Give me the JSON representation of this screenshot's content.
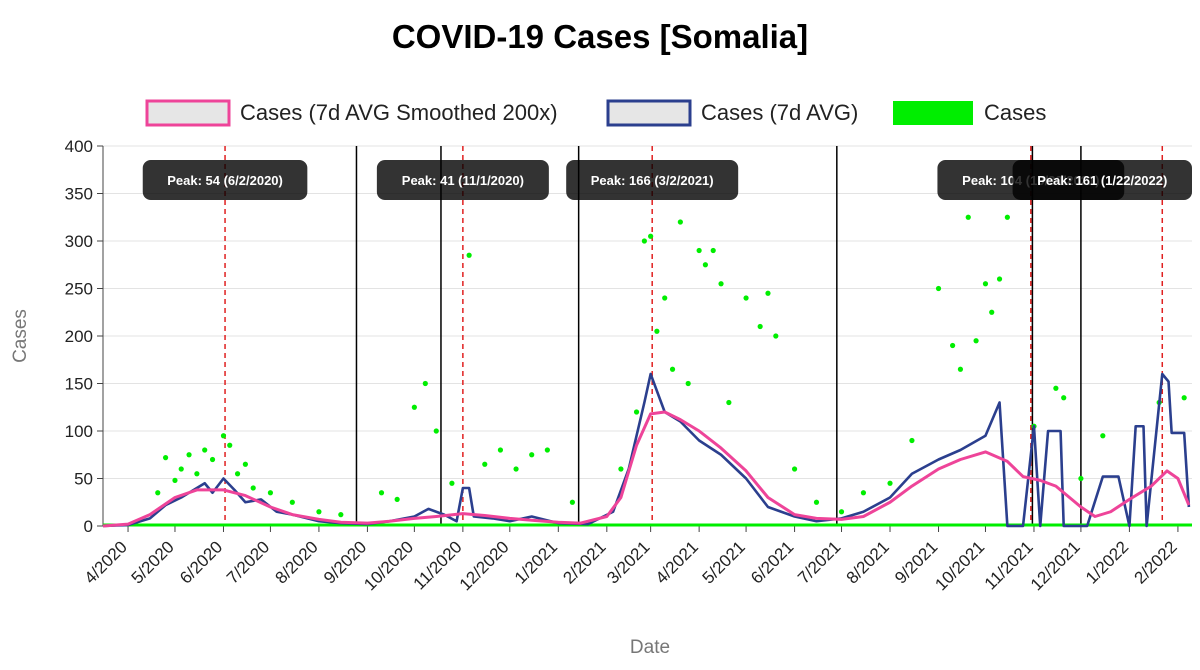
{
  "chart_data": {
    "type": "line",
    "title": "COVID-19 Cases [Somalia]",
    "xlabel": "Date",
    "ylabel": "Cases",
    "ylim": [
      0,
      400
    ],
    "yticks": [
      0,
      50,
      100,
      150,
      200,
      250,
      300,
      350,
      400
    ],
    "xticks": [
      "4/2020",
      "5/2020",
      "6/2020",
      "7/2020",
      "8/2020",
      "9/2020",
      "10/2020",
      "11/2020",
      "12/2020",
      "1/2021",
      "2/2021",
      "3/2021",
      "4/2021",
      "5/2021",
      "6/2021",
      "7/2021",
      "8/2021",
      "9/2021",
      "10/2021",
      "11/2021",
      "12/2021",
      "1/2022",
      "2/2022"
    ],
    "x_range": [
      "2020-03-16",
      "2022-02-10"
    ],
    "grid": true,
    "legend_position": "top",
    "series": [
      {
        "name": "Cases (7d AVG Smoothed 200x)",
        "color": "#ee4499",
        "points": [
          [
            "2020-03-16",
            0
          ],
          [
            "2020-04-01",
            2
          ],
          [
            "2020-04-15",
            12
          ],
          [
            "2020-05-01",
            30
          ],
          [
            "2020-05-15",
            38
          ],
          [
            "2020-06-01",
            38
          ],
          [
            "2020-06-15",
            32
          ],
          [
            "2020-07-01",
            20
          ],
          [
            "2020-07-15",
            12
          ],
          [
            "2020-08-01",
            7
          ],
          [
            "2020-08-15",
            4
          ],
          [
            "2020-09-01",
            3
          ],
          [
            "2020-09-15",
            5
          ],
          [
            "2020-10-01",
            8
          ],
          [
            "2020-10-15",
            10
          ],
          [
            "2020-11-01",
            13
          ],
          [
            "2020-11-15",
            11
          ],
          [
            "2020-12-01",
            8
          ],
          [
            "2020-12-15",
            6
          ],
          [
            "2021-01-01",
            4
          ],
          [
            "2021-01-15",
            3
          ],
          [
            "2021-02-01",
            10
          ],
          [
            "2021-02-10",
            30
          ],
          [
            "2021-02-20",
            85
          ],
          [
            "2021-03-01",
            118
          ],
          [
            "2021-03-10",
            120
          ],
          [
            "2021-03-20",
            112
          ],
          [
            "2021-04-01",
            100
          ],
          [
            "2021-04-15",
            82
          ],
          [
            "2021-05-01",
            58
          ],
          [
            "2021-05-15",
            30
          ],
          [
            "2021-06-01",
            12
          ],
          [
            "2021-06-15",
            8
          ],
          [
            "2021-07-01",
            7
          ],
          [
            "2021-07-15",
            10
          ],
          [
            "2021-08-01",
            25
          ],
          [
            "2021-08-15",
            42
          ],
          [
            "2021-09-01",
            60
          ],
          [
            "2021-09-15",
            70
          ],
          [
            "2021-10-01",
            78
          ],
          [
            "2021-10-15",
            68
          ],
          [
            "2021-10-25",
            52
          ],
          [
            "2021-11-05",
            48
          ],
          [
            "2021-11-15",
            42
          ],
          [
            "2021-12-01",
            20
          ],
          [
            "2021-12-10",
            10
          ],
          [
            "2021-12-20",
            15
          ],
          [
            "2022-01-01",
            28
          ],
          [
            "2022-01-15",
            42
          ],
          [
            "2022-01-25",
            58
          ],
          [
            "2022-02-01",
            50
          ],
          [
            "2022-02-08",
            22
          ]
        ]
      },
      {
        "name": "Cases (7d AVG)",
        "color": "#2b3f8e",
        "points": [
          [
            "2020-03-16",
            0
          ],
          [
            "2020-04-01",
            1
          ],
          [
            "2020-04-15",
            8
          ],
          [
            "2020-04-25",
            22
          ],
          [
            "2020-05-05",
            30
          ],
          [
            "2020-05-15",
            40
          ],
          [
            "2020-05-20",
            45
          ],
          [
            "2020-05-25",
            35
          ],
          [
            "2020-06-01",
            50
          ],
          [
            "2020-06-08",
            38
          ],
          [
            "2020-06-15",
            25
          ],
          [
            "2020-06-25",
            28
          ],
          [
            "2020-07-05",
            15
          ],
          [
            "2020-07-15",
            12
          ],
          [
            "2020-08-01",
            5
          ],
          [
            "2020-08-15",
            3
          ],
          [
            "2020-09-01",
            2
          ],
          [
            "2020-09-15",
            5
          ],
          [
            "2020-10-01",
            10
          ],
          [
            "2020-10-10",
            18
          ],
          [
            "2020-10-20",
            12
          ],
          [
            "2020-10-28",
            5
          ],
          [
            "2020-11-01",
            40
          ],
          [
            "2020-11-05",
            40
          ],
          [
            "2020-11-08",
            10
          ],
          [
            "2020-11-20",
            8
          ],
          [
            "2020-12-01",
            5
          ],
          [
            "2020-12-15",
            10
          ],
          [
            "2021-01-01",
            3
          ],
          [
            "2021-01-20",
            2
          ],
          [
            "2021-02-05",
            15
          ],
          [
            "2021-02-15",
            60
          ],
          [
            "2021-02-25",
            130
          ],
          [
            "2021-03-01",
            160
          ],
          [
            "2021-03-10",
            120
          ],
          [
            "2021-03-20",
            110
          ],
          [
            "2021-04-01",
            90
          ],
          [
            "2021-04-15",
            75
          ],
          [
            "2021-05-01",
            50
          ],
          [
            "2021-05-15",
            20
          ],
          [
            "2021-06-01",
            10
          ],
          [
            "2021-06-15",
            5
          ],
          [
            "2021-07-01",
            8
          ],
          [
            "2021-07-15",
            15
          ],
          [
            "2021-08-01",
            30
          ],
          [
            "2021-08-15",
            55
          ],
          [
            "2021-09-01",
            70
          ],
          [
            "2021-09-15",
            80
          ],
          [
            "2021-10-01",
            95
          ],
          [
            "2021-10-10",
            130
          ],
          [
            "2021-10-15",
            0
          ],
          [
            "2021-10-25",
            0
          ],
          [
            "2021-11-01",
            105
          ],
          [
            "2021-11-05",
            0
          ],
          [
            "2021-11-10",
            100
          ],
          [
            "2021-11-18",
            100
          ],
          [
            "2021-11-20",
            0
          ],
          [
            "2021-12-05",
            0
          ],
          [
            "2021-12-15",
            52
          ],
          [
            "2021-12-25",
            52
          ],
          [
            "2022-01-01",
            0
          ],
          [
            "2022-01-05",
            105
          ],
          [
            "2022-01-10",
            105
          ],
          [
            "2022-01-12",
            0
          ],
          [
            "2022-01-22",
            160
          ],
          [
            "2022-01-26",
            152
          ],
          [
            "2022-01-28",
            98
          ],
          [
            "2022-02-05",
            98
          ],
          [
            "2022-02-08",
            20
          ]
        ]
      },
      {
        "name": "Cases",
        "color": "#00ee00",
        "points": [
          [
            "2020-04-20",
            35
          ],
          [
            "2020-04-25",
            72
          ],
          [
            "2020-05-01",
            48
          ],
          [
            "2020-05-05",
            60
          ],
          [
            "2020-05-10",
            75
          ],
          [
            "2020-05-15",
            55
          ],
          [
            "2020-05-20",
            80
          ],
          [
            "2020-05-25",
            70
          ],
          [
            "2020-06-01",
            95
          ],
          [
            "2020-06-05",
            85
          ],
          [
            "2020-06-10",
            55
          ],
          [
            "2020-06-15",
            65
          ],
          [
            "2020-06-20",
            40
          ],
          [
            "2020-07-01",
            35
          ],
          [
            "2020-07-15",
            25
          ],
          [
            "2020-08-01",
            15
          ],
          [
            "2020-08-15",
            12
          ],
          [
            "2020-09-10",
            35
          ],
          [
            "2020-09-20",
            28
          ],
          [
            "2020-10-01",
            125
          ],
          [
            "2020-10-08",
            150
          ],
          [
            "2020-10-15",
            100
          ],
          [
            "2020-10-25",
            45
          ],
          [
            "2020-11-05",
            285
          ],
          [
            "2020-11-15",
            65
          ],
          [
            "2020-11-25",
            80
          ],
          [
            "2020-12-05",
            60
          ],
          [
            "2020-12-15",
            75
          ],
          [
            "2020-12-25",
            80
          ],
          [
            "2021-01-10",
            25
          ],
          [
            "2021-02-10",
            60
          ],
          [
            "2021-02-20",
            120
          ],
          [
            "2021-02-25",
            300
          ],
          [
            "2021-03-01",
            305
          ],
          [
            "2021-03-05",
            205
          ],
          [
            "2021-03-10",
            240
          ],
          [
            "2021-03-15",
            165
          ],
          [
            "2021-03-20",
            320
          ],
          [
            "2021-03-25",
            150
          ],
          [
            "2021-04-01",
            290
          ],
          [
            "2021-04-05",
            275
          ],
          [
            "2021-04-10",
            290
          ],
          [
            "2021-04-15",
            255
          ],
          [
            "2021-04-20",
            130
          ],
          [
            "2021-05-01",
            240
          ],
          [
            "2021-05-10",
            210
          ],
          [
            "2021-05-15",
            245
          ],
          [
            "2021-05-20",
            200
          ],
          [
            "2021-06-01",
            60
          ],
          [
            "2021-06-15",
            25
          ],
          [
            "2021-07-01",
            15
          ],
          [
            "2021-07-15",
            35
          ],
          [
            "2021-08-01",
            45
          ],
          [
            "2021-08-15",
            90
          ],
          [
            "2021-09-01",
            250
          ],
          [
            "2021-09-10",
            190
          ],
          [
            "2021-09-15",
            165
          ],
          [
            "2021-09-20",
            325
          ],
          [
            "2021-09-25",
            195
          ],
          [
            "2021-10-01",
            255
          ],
          [
            "2021-10-05",
            225
          ],
          [
            "2021-10-10",
            260
          ],
          [
            "2021-10-15",
            325
          ],
          [
            "2021-11-01",
            105
          ],
          [
            "2021-11-15",
            145
          ],
          [
            "2021-11-20",
            135
          ],
          [
            "2021-12-01",
            50
          ],
          [
            "2021-12-15",
            95
          ],
          [
            "2022-01-20",
            130
          ],
          [
            "2022-02-05",
            135
          ]
        ]
      }
    ],
    "peaks": [
      {
        "label": "Peak: 54 (6/2/2020)",
        "date": "2020-06-02"
      },
      {
        "label": "Peak: 41 (11/1/2020)",
        "date": "2020-11-01"
      },
      {
        "label": "Peak: 166 (3/2/2021)",
        "date": "2021-03-02"
      },
      {
        "label": "Peak: 104 (10/30/2021)",
        "date": "2021-10-30"
      },
      {
        "label": "Peak: 161 (1/22/2022)",
        "date": "2022-01-22"
      }
    ],
    "vertical_markers": [
      "2020-08-25",
      "2020-10-18",
      "2021-01-14",
      "2021-06-28",
      "2021-10-31",
      "2021-12-01"
    ]
  }
}
